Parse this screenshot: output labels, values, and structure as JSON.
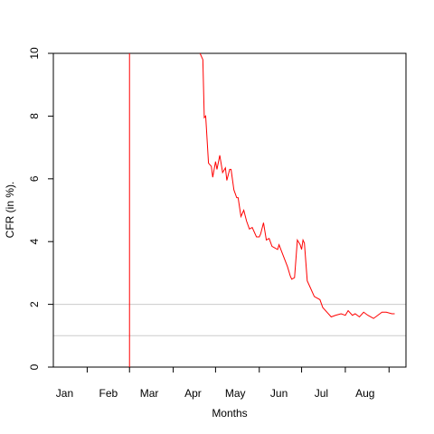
{
  "chart_data": {
    "type": "line",
    "xlabel": "Months",
    "ylabel": "CFR (in %).",
    "x": [
      46,
      46,
      70,
      96,
      98,
      99,
      100,
      102,
      104,
      105,
      107,
      108,
      110,
      112,
      114,
      115,
      117,
      118,
      120,
      122,
      123,
      125,
      127,
      129,
      131,
      133,
      136,
      138,
      139,
      141,
      143,
      145,
      147,
      149,
      151,
      152,
      155,
      158,
      160,
      161,
      163,
      165,
      167,
      168,
      169,
      170,
      172,
      174,
      177,
      179,
      181,
      183,
      186,
      189,
      192,
      196,
      199,
      201,
      204,
      206,
      209,
      212,
      215,
      219,
      222,
      225,
      228,
      232,
      234
    ],
    "series": [
      {
        "name": "CFR",
        "color": "#ff0000",
        "axis": "y",
        "values": [
          0,
          10.5,
          null,
          10,
          9.8,
          7.95,
          8.0,
          6.5,
          6.4,
          6.05,
          6.55,
          6.3,
          6.75,
          6.2,
          6.35,
          5.95,
          6.3,
          6.3,
          5.65,
          5.4,
          5.4,
          4.8,
          5.0,
          4.65,
          4.4,
          4.45,
          4.15,
          4.15,
          4.25,
          4.6,
          4.05,
          4.1,
          3.85,
          3.8,
          3.75,
          3.9,
          3.55,
          3.2,
          2.9,
          2.8,
          2.85,
          4.05,
          3.9,
          3.75,
          4.05,
          3.95,
          2.75,
          2.55,
          2.25,
          2.2,
          2.15,
          1.9,
          1.75,
          1.6,
          1.65,
          1.7,
          1.65,
          1.8,
          1.65,
          1.7,
          1.6,
          1.75,
          1.65,
          1.55,
          1.65,
          1.75,
          1.75,
          1.7,
          1.7
        ]
      }
    ],
    "xlim": [
      -8,
      242
    ],
    "xticks": [
      {
        "value": 0,
        "label": "Jan"
      },
      {
        "value": 31,
        "label": "Feb"
      },
      {
        "value": 60,
        "label": "Mar"
      },
      {
        "value": 91,
        "label": "Apr"
      },
      {
        "value": 121,
        "label": "May"
      },
      {
        "value": 152,
        "label": "Jun"
      },
      {
        "value": 182,
        "label": "Jul"
      },
      {
        "value": 213,
        "label": "Aug"
      }
    ],
    "xtick_marks": [
      16,
      46,
      77,
      107,
      138,
      168,
      199,
      230
    ],
    "ylim": [
      0,
      10
    ],
    "yticks": [
      0,
      2,
      4,
      6,
      8,
      10
    ],
    "hlines": [
      1,
      2
    ],
    "hline_color": "#cccccc"
  }
}
